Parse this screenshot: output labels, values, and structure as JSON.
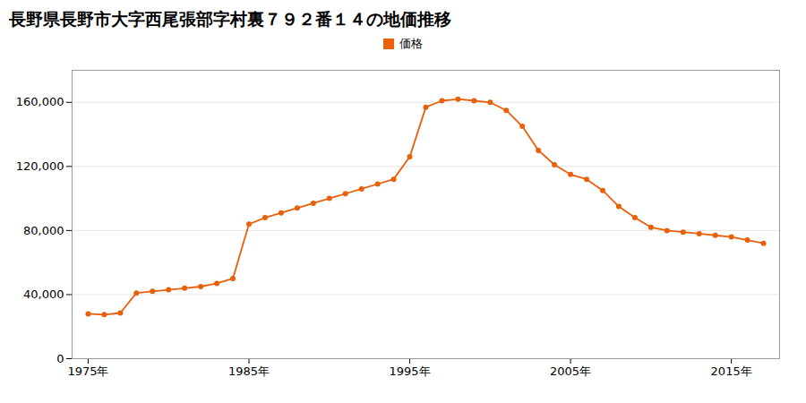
{
  "chart_data": {
    "type": "line",
    "title": "長野県長野市大字西尾張部字村裏７９２番１４の地価推移",
    "x": [
      1975,
      1976,
      1977,
      1978,
      1979,
      1980,
      1981,
      1982,
      1983,
      1984,
      1985,
      1986,
      1987,
      1988,
      1989,
      1990,
      1991,
      1992,
      1993,
      1994,
      1995,
      1996,
      1997,
      1998,
      1999,
      2000,
      2001,
      2002,
      2003,
      2004,
      2005,
      2006,
      2007,
      2008,
      2009,
      2010,
      2011,
      2012,
      2013,
      2014,
      2015,
      2016,
      2017
    ],
    "series": [
      {
        "name": "価格",
        "color": "#e8600a",
        "marker": "circle",
        "values": [
          28000,
          27500,
          28500,
          41000,
          42000,
          43000,
          44000,
          45000,
          47000,
          50000,
          84000,
          88000,
          91000,
          94000,
          97000,
          100000,
          103000,
          106000,
          109000,
          112000,
          126000,
          157000,
          161000,
          162000,
          161000,
          160000,
          155000,
          145000,
          130000,
          121000,
          115000,
          112000,
          105000,
          95000,
          88000,
          82000,
          80000,
          79000,
          78000,
          77000,
          76000,
          74000,
          72000
        ]
      }
    ],
    "xlim": [
      1974,
      2018
    ],
    "xticks": [
      {
        "value": 1975,
        "label": "1975年"
      },
      {
        "value": 1985,
        "label": "1985年"
      },
      {
        "value": 1995,
        "label": "1995年"
      },
      {
        "value": 2005,
        "label": "2005年"
      },
      {
        "value": 2015,
        "label": "2015年"
      }
    ],
    "ylim": [
      0,
      180000
    ],
    "yticks": [
      0,
      {
        "value": 40000,
        "label": "40,000"
      },
      {
        "value": 80000,
        "label": "80,000"
      },
      {
        "value": 120000,
        "label": "120,000"
      },
      {
        "value": 160000,
        "label": "160,000"
      }
    ],
    "grid": "y",
    "legend": "top"
  }
}
